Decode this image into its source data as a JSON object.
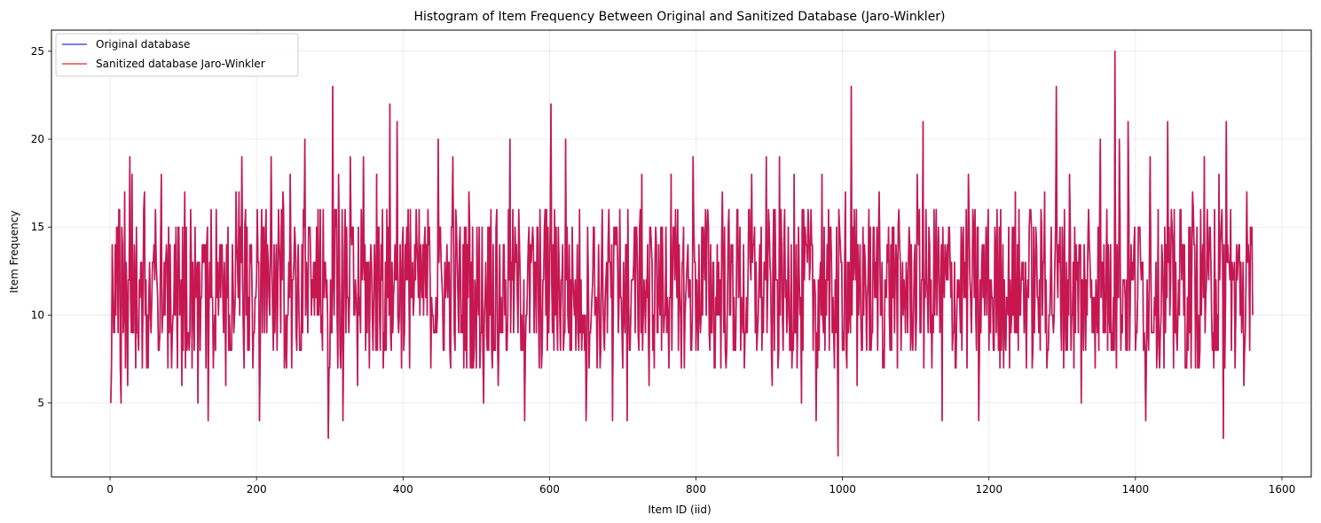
{
  "chart_data": {
    "type": "line",
    "title": "Histogram of Item Frequency Between Original and Sanitized Database (Jaro-Winkler)",
    "xlabel": "Item ID (iid)",
    "ylabel": "Item Frequency",
    "xlim": [
      -80,
      1640
    ],
    "ylim": [
      0.8,
      26.2
    ],
    "x_ticks": [
      0,
      200,
      400,
      600,
      800,
      1000,
      1200,
      1400,
      1600
    ],
    "y_ticks": [
      5,
      10,
      15,
      20,
      25
    ],
    "grid": true,
    "legend_position": "top-left",
    "x_range": [
      1,
      1560
    ],
    "anchor_points": [
      [
        1,
        5
      ],
      [
        5,
        9
      ],
      [
        9,
        15
      ],
      [
        13,
        16
      ],
      [
        15,
        5
      ],
      [
        20,
        17
      ],
      [
        24,
        6
      ],
      [
        27,
        19
      ],
      [
        30,
        18
      ],
      [
        35,
        7
      ],
      [
        40,
        12
      ],
      [
        47,
        17
      ],
      [
        52,
        7
      ],
      [
        57,
        11
      ],
      [
        66,
        8
      ],
      [
        70,
        18
      ],
      [
        75,
        10
      ],
      [
        80,
        15
      ],
      [
        86,
        10
      ],
      [
        92,
        7
      ],
      [
        98,
        6
      ],
      [
        102,
        17
      ],
      [
        110,
        16
      ],
      [
        116,
        15
      ],
      [
        120,
        5
      ],
      [
        124,
        11
      ],
      [
        130,
        14
      ],
      [
        134,
        4
      ],
      [
        140,
        11
      ],
      [
        150,
        14
      ],
      [
        158,
        6
      ],
      [
        165,
        8
      ],
      [
        172,
        17
      ],
      [
        176,
        17
      ],
      [
        180,
        19
      ],
      [
        186,
        10
      ],
      [
        196,
        9
      ],
      [
        204,
        4
      ],
      [
        212,
        14
      ],
      [
        220,
        19
      ],
      [
        228,
        8
      ],
      [
        236,
        17
      ],
      [
        246,
        18
      ],
      [
        255,
        8
      ],
      [
        266,
        20
      ],
      [
        274,
        13
      ],
      [
        284,
        16
      ],
      [
        292,
        11
      ],
      [
        298,
        3
      ],
      [
        304,
        23
      ],
      [
        312,
        18
      ],
      [
        318,
        4
      ],
      [
        328,
        19
      ],
      [
        338,
        6
      ],
      [
        346,
        19
      ],
      [
        354,
        7
      ],
      [
        364,
        18
      ],
      [
        372,
        16
      ],
      [
        382,
        22
      ],
      [
        388,
        12
      ],
      [
        392,
        21
      ],
      [
        400,
        15
      ],
      [
        410,
        16
      ],
      [
        420,
        13
      ],
      [
        434,
        16
      ],
      [
        448,
        20
      ],
      [
        458,
        11
      ],
      [
        468,
        19
      ],
      [
        480,
        10
      ],
      [
        490,
        17
      ],
      [
        500,
        7
      ],
      [
        510,
        5
      ],
      [
        520,
        16
      ],
      [
        530,
        6
      ],
      [
        540,
        12
      ],
      [
        546,
        20
      ],
      [
        556,
        11
      ],
      [
        566,
        4
      ],
      [
        576,
        14
      ],
      [
        586,
        7
      ],
      [
        596,
        16
      ],
      [
        602,
        22
      ],
      [
        612,
        15
      ],
      [
        622,
        20
      ],
      [
        632,
        12
      ],
      [
        642,
        9
      ],
      [
        650,
        4
      ],
      [
        660,
        15
      ],
      [
        670,
        8
      ],
      [
        680,
        14
      ],
      [
        686,
        4
      ],
      [
        696,
        16
      ],
      [
        706,
        4
      ],
      [
        716,
        15
      ],
      [
        726,
        18
      ],
      [
        736,
        6
      ],
      [
        746,
        14
      ],
      [
        756,
        9
      ],
      [
        766,
        18
      ],
      [
        776,
        8
      ],
      [
        786,
        11
      ],
      [
        796,
        19
      ],
      [
        806,
        9
      ],
      [
        816,
        16
      ],
      [
        826,
        7
      ],
      [
        836,
        17
      ],
      [
        846,
        10
      ],
      [
        856,
        16
      ],
      [
        866,
        7
      ],
      [
        876,
        18
      ],
      [
        886,
        12
      ],
      [
        896,
        19
      ],
      [
        904,
        6
      ],
      [
        914,
        19
      ],
      [
        924,
        9
      ],
      [
        934,
        18
      ],
      [
        944,
        5
      ],
      [
        954,
        15
      ],
      [
        964,
        4
      ],
      [
        972,
        18
      ],
      [
        982,
        8
      ],
      [
        994,
        2
      ],
      [
        1004,
        17
      ],
      [
        1012,
        23
      ],
      [
        1020,
        6
      ],
      [
        1030,
        14
      ],
      [
        1040,
        9
      ],
      [
        1050,
        17
      ],
      [
        1060,
        11
      ],
      [
        1070,
        15
      ],
      [
        1080,
        8
      ],
      [
        1090,
        13
      ],
      [
        1102,
        18
      ],
      [
        1110,
        21
      ],
      [
        1120,
        9
      ],
      [
        1128,
        16
      ],
      [
        1136,
        4
      ],
      [
        1146,
        15
      ],
      [
        1154,
        7
      ],
      [
        1164,
        14
      ],
      [
        1172,
        18
      ],
      [
        1180,
        11
      ],
      [
        1186,
        4
      ],
      [
        1196,
        15
      ],
      [
        1206,
        8
      ],
      [
        1216,
        16
      ],
      [
        1226,
        10
      ],
      [
        1236,
        17
      ],
      [
        1246,
        12
      ],
      [
        1256,
        16
      ],
      [
        1266,
        11
      ],
      [
        1276,
        17
      ],
      [
        1284,
        12
      ],
      [
        1292,
        23
      ],
      [
        1300,
        15
      ],
      [
        1310,
        18
      ],
      [
        1318,
        9
      ],
      [
        1326,
        5
      ],
      [
        1336,
        16
      ],
      [
        1346,
        12
      ],
      [
        1352,
        20
      ],
      [
        1360,
        13
      ],
      [
        1366,
        14
      ],
      [
        1372,
        25
      ],
      [
        1378,
        20
      ],
      [
        1384,
        12
      ],
      [
        1390,
        21
      ],
      [
        1398,
        14
      ],
      [
        1406,
        15
      ],
      [
        1414,
        4
      ],
      [
        1420,
        19
      ],
      [
        1428,
        13
      ],
      [
        1436,
        14
      ],
      [
        1444,
        21
      ],
      [
        1452,
        7
      ],
      [
        1462,
        16
      ],
      [
        1470,
        7
      ],
      [
        1478,
        17
      ],
      [
        1486,
        10
      ],
      [
        1494,
        19
      ],
      [
        1500,
        12
      ],
      [
        1508,
        16
      ],
      [
        1514,
        18
      ],
      [
        1520,
        3
      ],
      [
        1524,
        21
      ],
      [
        1530,
        16
      ],
      [
        1536,
        7
      ],
      [
        1542,
        14
      ],
      [
        1548,
        6
      ],
      [
        1552,
        17
      ],
      [
        1556,
        8
      ],
      [
        1560,
        10
      ]
    ],
    "series": [
      {
        "name": "Original database",
        "color": "#4b50e8"
      },
      {
        "name": "Sanitized database Jaro-Winkler",
        "color": "#f04a4a"
      }
    ],
    "overlap_color": "#c8174e"
  }
}
